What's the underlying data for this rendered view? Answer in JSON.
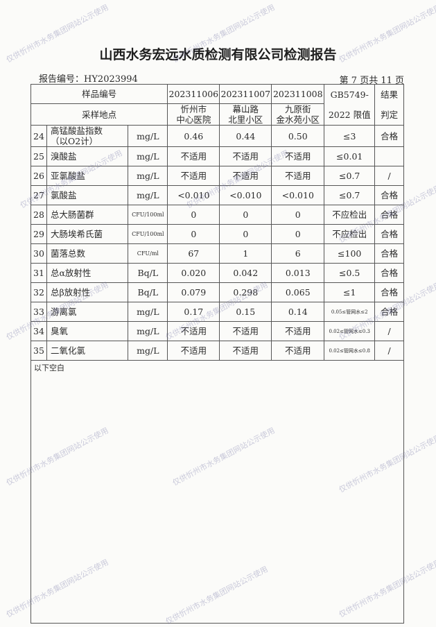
{
  "title": "山西水务宏远水质检测有限公司检测报告",
  "report_no": "报告编号：HY2023994",
  "page": "第 7 页共 11 页",
  "header": {
    "sample_no": "样品编号",
    "site": "采样地点",
    "limit1": "GB5749-",
    "limit2": "2022 限值",
    "result1": "结果",
    "result2": "判定",
    "samples": [
      {
        "no": "202311006",
        "site1": "忻州市",
        "site2": "中心医院"
      },
      {
        "no": "202311007",
        "site1": "幕山路",
        "site2": "北里小区"
      },
      {
        "no": "202311008",
        "site1": "九原街",
        "site2": "金水苑小区"
      }
    ]
  },
  "rows": [
    {
      "n": "24",
      "item": "高锰酸盐指数",
      "item2": "（以O2计）",
      "unit": "mg/L",
      "v": [
        "0.46",
        "0.44",
        "0.50"
      ],
      "limit": "≤3",
      "res": "合格"
    },
    {
      "n": "25",
      "item": "溴酸盐",
      "item2": "",
      "unit": "mg/L",
      "v": [
        "不适用",
        "不适用",
        "不适用"
      ],
      "limit": "≤0.01",
      "res": ""
    },
    {
      "n": "26",
      "item": "亚氯酸盐",
      "item2": "",
      "unit": "mg/L",
      "v": [
        "不适用",
        "不适用",
        "不适用"
      ],
      "limit": "≤0.7",
      "res": "/"
    },
    {
      "n": "27",
      "item": "氯酸盐",
      "item2": "",
      "unit": "mg/L",
      "v": [
        "<0.010",
        "<0.010",
        "<0.010"
      ],
      "limit": "≤0.7",
      "res": "合格"
    },
    {
      "n": "28",
      "item": "总大肠菌群",
      "item2": "",
      "unit": "CFU/100ml",
      "v": [
        "0",
        "0",
        "0"
      ],
      "limit": "不应检出",
      "res": "合格"
    },
    {
      "n": "29",
      "item": "大肠埃希氏菌",
      "item2": "",
      "unit": "CFU/100ml",
      "v": [
        "0",
        "0",
        "0"
      ],
      "limit": "不应检出",
      "res": "合格"
    },
    {
      "n": "30",
      "item": "菌落总数",
      "item2": "",
      "unit": "CFU/ml",
      "v": [
        "67",
        "1",
        "6"
      ],
      "limit": "≤100",
      "res": "合格"
    },
    {
      "n": "31",
      "item": "总α放射性",
      "item2": "",
      "unit": "Bq/L",
      "v": [
        "0.020",
        "0.042",
        "0.013"
      ],
      "limit": "≤0.5",
      "res": "合格"
    },
    {
      "n": "32",
      "item": "总β放射性",
      "item2": "",
      "unit": "Bq/L",
      "v": [
        "0.079",
        "0.298",
        "0.065"
      ],
      "limit": "≤1",
      "res": "合格"
    },
    {
      "n": "33",
      "item": "游离氯",
      "item2": "",
      "unit": "mg/L",
      "v": [
        "0.17",
        "0.15",
        "0.14"
      ],
      "limit": "0.05≤管网水≤2",
      "res": "合格"
    },
    {
      "n": "34",
      "item": "臭氧",
      "item2": "",
      "unit": "mg/L",
      "v": [
        "不适用",
        "不适用",
        "不适用"
      ],
      "limit": "0.02≤管网水≤0.3",
      "res": "/"
    },
    {
      "n": "35",
      "item": "二氧化氯",
      "item2": "",
      "unit": "mg/L",
      "v": [
        "不适用",
        "不适用",
        "不适用"
      ],
      "limit": "0.02≤管网水≤0.8",
      "res": "/"
    }
  ],
  "blank_note": "以下空白",
  "watermark": "仅供忻州市水务集团网站公示使用"
}
